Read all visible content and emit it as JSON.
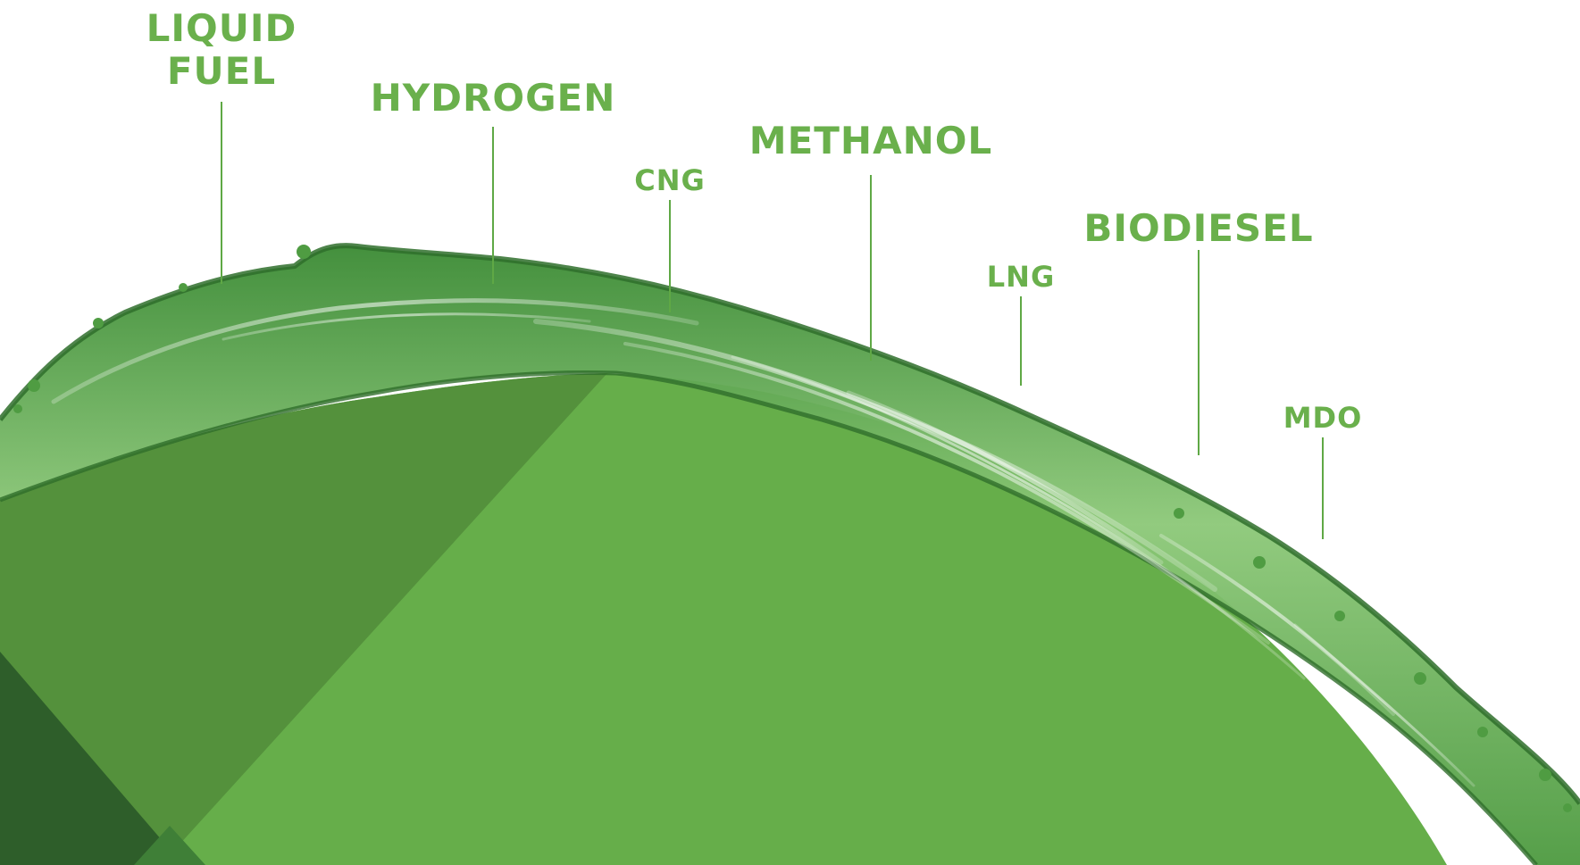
{
  "colors": {
    "label_green": "#6ab04c",
    "leader_green": "#5fa845",
    "background_main": "#66ae4a",
    "background_left": "#54913c",
    "background_corner": "#2e5e2a",
    "wave_dark": "#2f6e2b",
    "wave_mid": "#3f8a35",
    "wave_light": "#9fd08a",
    "wave_highlight": "#e6f4de"
  },
  "fuels": [
    {
      "name": "LIQUID\nFUEL",
      "key": "liquid-fuel"
    },
    {
      "name": "HYDROGEN",
      "key": "hydrogen"
    },
    {
      "name": "CNG",
      "key": "cng"
    },
    {
      "name": "METHANOL",
      "key": "methanol"
    },
    {
      "name": "LNG",
      "key": "lng"
    },
    {
      "name": "BIODIESEL",
      "key": "biodiesel"
    },
    {
      "name": "MDO",
      "key": "mdo"
    }
  ]
}
